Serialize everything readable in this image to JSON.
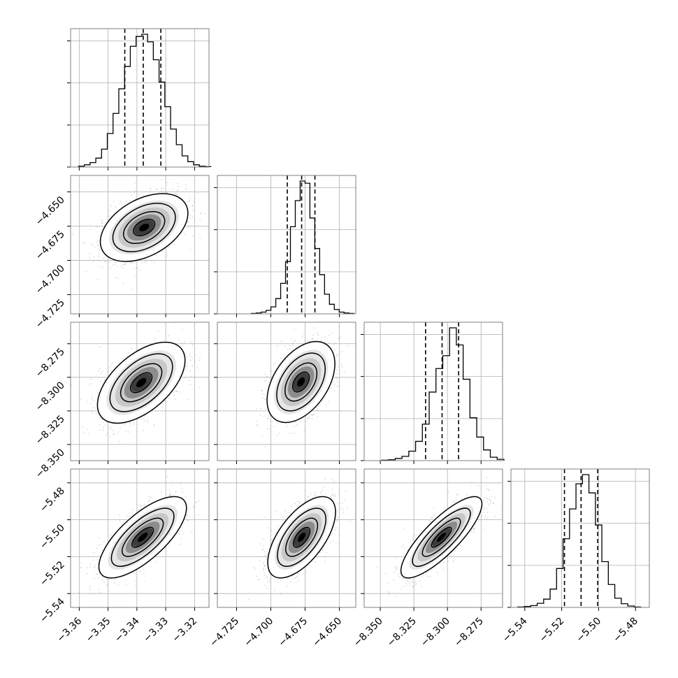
{
  "chart_data": {
    "type": "corner",
    "grid": true,
    "parameters": [
      {
        "index": 0,
        "range": [
          -3.363,
          -3.315
        ],
        "ticks": [
          -3.36,
          -3.35,
          -3.34,
          -3.33,
          -3.32
        ],
        "tick_labels": [
          "−3.36",
          "−3.35",
          "−3.34",
          "−3.33",
          "−3.32"
        ],
        "quantiles": [
          -3.3442,
          -3.3378,
          -3.3317
        ],
        "mode": -3.3373,
        "width": 0.0062
      },
      {
        "index": 1,
        "range": [
          -4.739,
          -4.638
        ],
        "ticks": [
          -4.725,
          -4.7,
          -4.675,
          -4.65
        ],
        "tick_labels": [
          "−4.725",
          "−4.700",
          "−4.675",
          "−4.650"
        ],
        "quantiles": [
          -4.688,
          -4.6775,
          -4.6678
        ],
        "mode": -4.6768,
        "width": 0.0101
      },
      {
        "index": 2,
        "range": [
          -8.362,
          -8.259
        ],
        "ticks": [
          -8.35,
          -8.325,
          -8.3,
          -8.275
        ],
        "tick_labels": [
          "−8.350",
          "−8.325",
          "−8.300",
          "−8.275"
        ],
        "quantiles": [
          -8.3163,
          -8.304,
          -8.2917
        ],
        "mode": -8.3035,
        "width": 0.0123
      },
      {
        "index": 3,
        "range": [
          -5.5475,
          -5.4725
        ],
        "ticks": [
          -5.54,
          -5.52,
          -5.5,
          -5.48
        ],
        "tick_labels": [
          "−5.54",
          "−5.52",
          "−5.50",
          "−5.48"
        ],
        "quantiles": [
          -5.5185,
          -5.5095,
          -5.5005
        ],
        "mode": -5.5105,
        "width": 0.009
      }
    ],
    "histograms": [
      {
        "param": 0,
        "counts": [
          2,
          5,
          10,
          20,
          40,
          75,
          120,
          175,
          225,
          270,
          292,
          297,
          280,
          240,
          190,
          135,
          85,
          50,
          25,
          12,
          5,
          2,
          1
        ]
      },
      {
        "param": 1,
        "counts": [
          1,
          2,
          4,
          8,
          16,
          35,
          70,
          120,
          200,
          260,
          305,
          300,
          220,
          150,
          90,
          45,
          22,
          10,
          4,
          2,
          1
        ]
      },
      {
        "param": 2,
        "counts": [
          1,
          2,
          5,
          10,
          22,
          45,
          85,
          160,
          215,
          245,
          310,
          270,
          190,
          100,
          55,
          25,
          8,
          3
        ]
      },
      {
        "param": 3,
        "counts": [
          1,
          2,
          4,
          9,
          18,
          40,
          85,
          150,
          215,
          270,
          290,
          250,
          180,
          100,
          50,
          20,
          8,
          3,
          1
        ]
      }
    ],
    "pairs": [
      {
        "x_param": 0,
        "y_param": 1,
        "center": [
          -3.3375,
          -4.676
        ],
        "correlation": 0.42
      },
      {
        "x_param": 0,
        "y_param": 2,
        "center": [
          -3.3385,
          -8.304
        ],
        "correlation": 0.55
      },
      {
        "x_param": 1,
        "y_param": 2,
        "center": [
          -4.678,
          -8.3035
        ],
        "correlation": 0.45
      },
      {
        "x_param": 0,
        "y_param": 3,
        "center": [
          -3.338,
          -5.5095
        ],
        "correlation": 0.72
      },
      {
        "x_param": 1,
        "y_param": 3,
        "center": [
          -4.6775,
          -5.5095
        ],
        "correlation": 0.62
      },
      {
        "x_param": 2,
        "y_param": 3,
        "center": [
          -8.3045,
          -5.5095
        ],
        "correlation": 0.82
      }
    ],
    "colors": {
      "line": "#000000",
      "scatter": "#999999",
      "grid": "#b0b0b0",
      "frame": "#7f7f7f"
    }
  }
}
